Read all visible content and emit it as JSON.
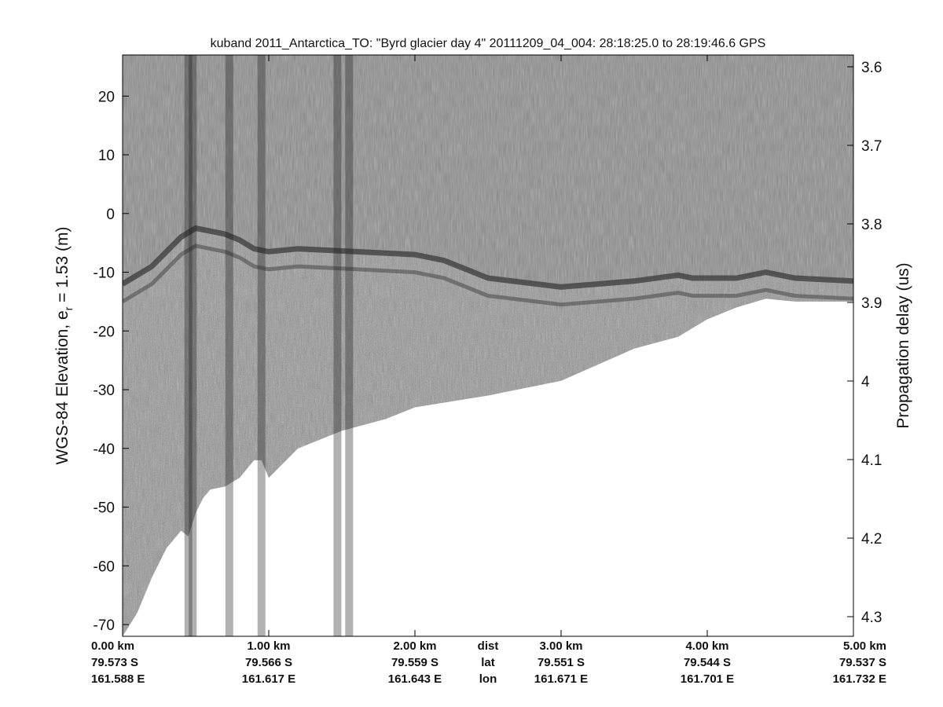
{
  "chart_data": {
    "type": "heatmap",
    "title": "kuband 2011_Antarctica_TO: \"Byrd glacier day 4\"  20111209_04_004: 28:18:25.0 to 28:19:46.6 GPS",
    "ylabel": "WGS-84 Elevation, e",
    "ylabel_sub": "r",
    "ylabel_tail": " = 1.53 (m)",
    "y2label": "Propagation delay (us)",
    "ylim": [
      -72,
      27
    ],
    "y2lim": [
      3.585,
      4.325
    ],
    "xlim": [
      0,
      5
    ],
    "yticks": [
      20,
      10,
      0,
      -10,
      -20,
      -30,
      -40,
      -50,
      -60,
      -70
    ],
    "y2ticks": [
      3.6,
      3.7,
      3.8,
      3.9,
      4.0,
      4.1,
      4.2,
      4.3
    ],
    "y2tick_labels": [
      "3.6",
      "3.7",
      "3.8",
      "3.9",
      "4",
      "4.1",
      "4.2",
      "4.3"
    ],
    "grid": false,
    "x_axis_rows": [
      {
        "label": "dist",
        "values": [
          "0.00 km",
          "1.00 km",
          "2.00 km",
          "3.00 km",
          "4.00 km",
          "5.00 km"
        ]
      },
      {
        "label": "lat",
        "values": [
          "79.573 S",
          "79.566 S",
          "79.559 S",
          "79.551 S",
          "79.544 S",
          "79.537 S"
        ]
      },
      {
        "label": "lon",
        "values": [
          "161.588 E",
          "161.617 E",
          "161.643 E",
          "161.671 E",
          "161.701 E",
          "161.732 E"
        ]
      }
    ],
    "x_tick_positions_km": [
      0,
      1,
      2,
      3,
      4,
      5
    ],
    "surface_elevation": {
      "x_km": [
        0,
        0.2,
        0.4,
        0.5,
        0.6,
        0.7,
        0.8,
        0.9,
        1.0,
        1.2,
        1.6,
        2.0,
        2.2,
        2.5,
        3.0,
        3.5,
        3.8,
        3.9,
        4.2,
        4.4,
        4.6,
        5.0
      ],
      "elevation_m": [
        -12,
        -9,
        -4,
        -2.5,
        -3,
        -3.5,
        -4.5,
        -6,
        -6.5,
        -6,
        -6.5,
        -7,
        -8,
        -11,
        -12.5,
        -11.5,
        -10.5,
        -11,
        -11,
        -10,
        -11,
        -11.5
      ]
    },
    "signal_bottom": {
      "x_km": [
        0,
        0.1,
        0.2,
        0.3,
        0.4,
        0.45,
        0.5,
        0.55,
        0.6,
        0.7,
        0.8,
        0.9,
        0.95,
        1.0,
        1.2,
        1.5,
        1.8,
        2.0,
        2.5,
        3.0,
        3.5,
        3.8,
        4.0,
        4.2,
        4.4,
        4.6,
        5.0
      ],
      "elevation_m": [
        -72,
        -68,
        -62,
        -57,
        -54,
        -55,
        -51,
        -48.5,
        -47,
        -46.5,
        -45,
        -42,
        -42,
        -45,
        -40,
        -37,
        -35,
        -33,
        -31,
        -28.5,
        -23,
        -21,
        -18,
        -16,
        -14.5,
        -15,
        -15
      ]
    },
    "bright_columns_km": [
      0.45,
      0.48,
      0.73,
      0.95,
      1.47,
      1.55
    ]
  }
}
